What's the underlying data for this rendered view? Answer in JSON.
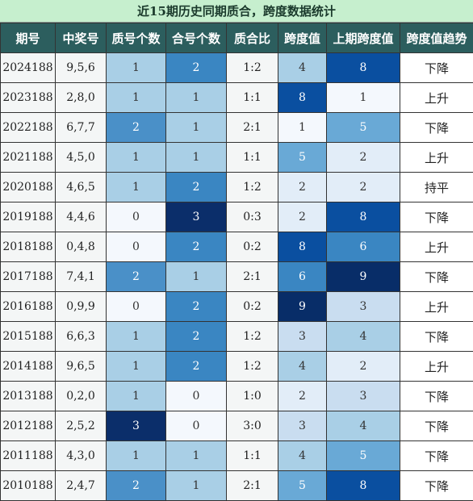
{
  "title": "近15期历史同期质合，跨度数据统计",
  "headers": [
    "期号",
    "中奖号",
    "质号个数",
    "合号个数",
    "质合比",
    "跨度值",
    "上期跨度值",
    "跨度值趋势"
  ],
  "rows": [
    {
      "period": "2024188",
      "numbers": "9,5,6",
      "prime": "1",
      "composite": "2",
      "ratio": "1:2",
      "span": "4",
      "prev_span": "8",
      "trend": "下降"
    },
    {
      "period": "2023188",
      "numbers": "2,8,0",
      "prime": "1",
      "composite": "1",
      "ratio": "1:1",
      "span": "8",
      "prev_span": "1",
      "trend": "上升"
    },
    {
      "period": "2022188",
      "numbers": "6,7,7",
      "prime": "2",
      "composite": "1",
      "ratio": "2:1",
      "span": "1",
      "prev_span": "5",
      "trend": "下降"
    },
    {
      "period": "2021188",
      "numbers": "4,5,0",
      "prime": "1",
      "composite": "1",
      "ratio": "1:1",
      "span": "5",
      "prev_span": "2",
      "trend": "上升"
    },
    {
      "period": "2020188",
      "numbers": "4,6,5",
      "prime": "1",
      "composite": "2",
      "ratio": "1:2",
      "span": "2",
      "prev_span": "2",
      "trend": "持平"
    },
    {
      "period": "2019188",
      "numbers": "4,4,6",
      "prime": "0",
      "composite": "3",
      "ratio": "0:3",
      "span": "2",
      "prev_span": "8",
      "trend": "下降"
    },
    {
      "period": "2018188",
      "numbers": "0,4,8",
      "prime": "0",
      "composite": "2",
      "ratio": "0:2",
      "span": "8",
      "prev_span": "6",
      "trend": "上升"
    },
    {
      "period": "2017188",
      "numbers": "7,4,1",
      "prime": "2",
      "composite": "1",
      "ratio": "2:1",
      "span": "6",
      "prev_span": "9",
      "trend": "下降"
    },
    {
      "period": "2016188",
      "numbers": "0,9,9",
      "prime": "0",
      "composite": "2",
      "ratio": "0:2",
      "span": "9",
      "prev_span": "3",
      "trend": "上升"
    },
    {
      "period": "2015188",
      "numbers": "6,6,3",
      "prime": "1",
      "composite": "2",
      "ratio": "1:2",
      "span": "3",
      "prev_span": "4",
      "trend": "下降"
    },
    {
      "period": "2014188",
      "numbers": "9,6,5",
      "prime": "1",
      "composite": "2",
      "ratio": "1:2",
      "span": "4",
      "prev_span": "2",
      "trend": "上升"
    },
    {
      "period": "2013188",
      "numbers": "0,2,0",
      "prime": "1",
      "composite": "0",
      "ratio": "1:0",
      "span": "2",
      "prev_span": "3",
      "trend": "下降"
    },
    {
      "period": "2012188",
      "numbers": "2,5,2",
      "prime": "3",
      "composite": "0",
      "ratio": "3:0",
      "span": "3",
      "prev_span": "4",
      "trend": "下降"
    },
    {
      "period": "2011188",
      "numbers": "4,3,0",
      "prime": "1",
      "composite": "1",
      "ratio": "1:1",
      "span": "4",
      "prev_span": "5",
      "trend": "下降"
    },
    {
      "period": "2010188",
      "numbers": "2,4,7",
      "prime": "2",
      "composite": "1",
      "ratio": "2:1",
      "span": "5",
      "prev_span": "8",
      "trend": "下降"
    }
  ],
  "colors": {
    "title_bg": "#c6efce",
    "header_bg": "#2c5e5e",
    "prime_scale": [
      "#f4f8fd",
      "#a9cfe6",
      "#4a90c8",
      "#0b2e6a"
    ],
    "composite_scale": [
      "#f4f8fd",
      "#a9cfe6",
      "#3a86c2",
      "#0b2e6a"
    ],
    "span_scale": {
      "1": "#f4f8fd",
      "2": "#e2edf8",
      "3": "#c9ddf0",
      "4": "#a9cfe6",
      "5": "#69a9d6",
      "6": "#3a86c2",
      "8": "#0a4fa0",
      "9": "#082d68"
    }
  }
}
